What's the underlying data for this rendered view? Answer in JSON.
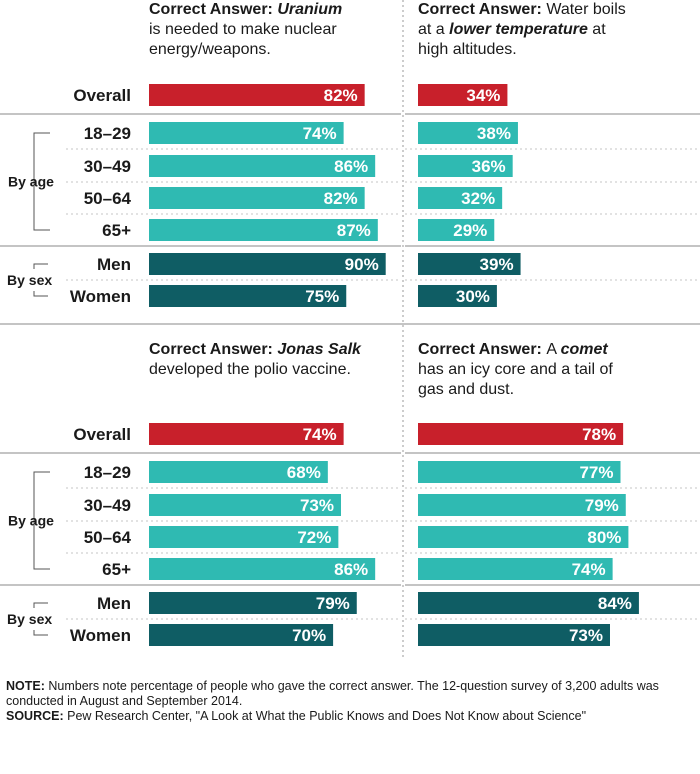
{
  "chart_data": [
    {
      "type": "bar",
      "title_label": "Correct Answer:",
      "title_parts": [
        [
          "Correct Answer: ",
          "b"
        ],
        [
          "Uranium",
          "bi"
        ],
        [
          "|",
          ""
        ],
        [
          "is needed to make nuclear",
          ""
        ],
        [
          "|",
          ""
        ],
        [
          "energy/weapons.",
          ""
        ]
      ],
      "categories": [
        "Overall",
        "18–29",
        "30–49",
        "50–64",
        "65+",
        "Men",
        "Women"
      ],
      "values": [
        82,
        74,
        86,
        82,
        87,
        90,
        75
      ],
      "value_labels": [
        "82%",
        "74%",
        "86%",
        "82%",
        "87%",
        "90%",
        "75%"
      ]
    },
    {
      "type": "bar",
      "title_label": "Correct Answer:",
      "title_parts": [
        [
          "Correct Answer: ",
          "b"
        ],
        [
          "Water boils",
          ""
        ],
        [
          "|",
          ""
        ],
        [
          "at a ",
          ""
        ],
        [
          "lower temperature",
          "bi"
        ],
        [
          " at",
          ""
        ],
        [
          "|",
          ""
        ],
        [
          "high altitudes.",
          ""
        ]
      ],
      "categories": [
        "Overall",
        "18–29",
        "30–49",
        "50–64",
        "65+",
        "Men",
        "Women"
      ],
      "values": [
        34,
        38,
        36,
        32,
        29,
        39,
        30
      ],
      "value_labels": [
        "34%",
        "38%",
        "36%",
        "32%",
        "29%",
        "39%",
        "30%"
      ]
    },
    {
      "type": "bar",
      "title_label": "Correct Answer:",
      "title_parts": [
        [
          "Correct Answer: ",
          "b"
        ],
        [
          "Jonas Salk",
          "bi"
        ],
        [
          "|",
          ""
        ],
        [
          "developed the polio vaccine.",
          ""
        ]
      ],
      "categories": [
        "Overall",
        "18–29",
        "30–49",
        "50–64",
        "65+",
        "Men",
        "Women"
      ],
      "values": [
        74,
        68,
        73,
        72,
        86,
        79,
        70
      ],
      "value_labels": [
        "74%",
        "68%",
        "73%",
        "72%",
        "86%",
        "79%",
        "70%"
      ]
    },
    {
      "type": "bar",
      "title_label": "Correct Answer:",
      "title_parts": [
        [
          "Correct Answer: ",
          "b"
        ],
        [
          "A ",
          ""
        ],
        [
          "comet",
          "bi"
        ],
        [
          "|",
          ""
        ],
        [
          "has an icy core and a tail of",
          ""
        ],
        [
          "|",
          ""
        ],
        [
          "gas and dust.",
          ""
        ]
      ],
      "categories": [
        "Overall",
        "18–29",
        "30–49",
        "50–64",
        "65+",
        "Men",
        "Women"
      ],
      "values": [
        78,
        77,
        79,
        80,
        74,
        84,
        73
      ],
      "value_labels": [
        "78%",
        "77%",
        "79%",
        "80%",
        "74%",
        "84%",
        "73%"
      ]
    }
  ],
  "row_labels": [
    "Overall",
    "18–29",
    "30–49",
    "50–64",
    "65+",
    "Men",
    "Women"
  ],
  "group_labels": {
    "age": "By age",
    "sex": "By sex"
  },
  "colors": {
    "overall": "#c8202b",
    "age": "#2fbab2",
    "sex": "#0f5d64"
  },
  "note_label": "NOTE:",
  "note_text": "Numbers note percentage of people who gave the correct answer. The 12-question survey of 3,200 adults was conducted in August and September 2014.",
  "source_label": "SOURCE:",
  "source_text": "Pew Research Center, \"A Look at What the Public Knows and Does Not Know about Science\""
}
